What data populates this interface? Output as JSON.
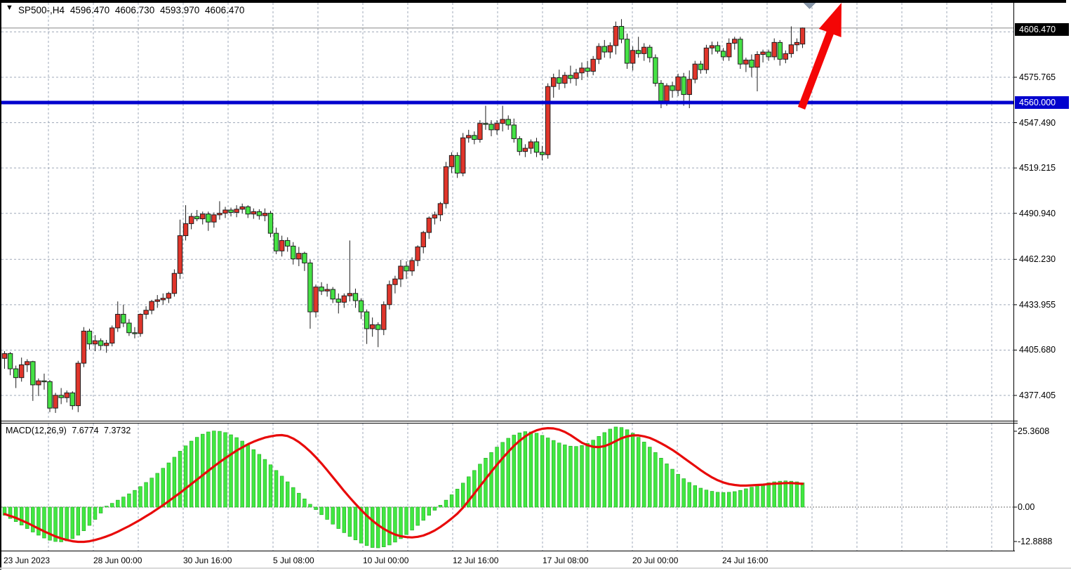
{
  "header": {
    "symbol_period": "SP500-,H4",
    "open": "4596.470",
    "high": "4606.730",
    "low": "4593.970",
    "close": "4606.470"
  },
  "indicator": {
    "label": "MACD(12,26,9)",
    "macd_value": "7.6774",
    "signal_value": "7.3732"
  },
  "price_axis": {
    "current_price": "4606.470",
    "level_price": "4560.000",
    "ticks": [
      "4575.765",
      "4547.490",
      "4519.215",
      "4490.940",
      "4462.230",
      "4433.955",
      "4405.680",
      "4377.405"
    ]
  },
  "macd_axis": {
    "ticks": [
      "25.3608",
      "0.00",
      "-12.8888"
    ]
  },
  "time_axis": {
    "labels": [
      "23 Jun 2023",
      "28 Jun 00:00",
      "30 Jun 16:00",
      "5 Jul 08:00",
      "10 Jul 00:00",
      "12 Jul 16:00",
      "17 Jul 08:00",
      "20 Jul 00:00",
      "24 Jul 16:00"
    ]
  },
  "colors": {
    "up_candle": "#E0352B",
    "down_candle": "#45E245",
    "candle_border": "#1c1c1c",
    "macd_hist": "#41E841",
    "macd_signal": "#E80A0A",
    "level_line": "#0202CE",
    "current_line": "#888888",
    "grid": "#9FA8B8",
    "arrow": "#F40606",
    "marker": "#8796A8"
  },
  "chart_data": {
    "type": "candlestick",
    "title": "SP500-,H4",
    "ylim": [
      4362,
      4622
    ],
    "grid_prices": [
      4604.04,
      4575.765,
      4547.49,
      4519.215,
      4490.94,
      4462.23,
      4433.955,
      4405.68,
      4377.405
    ],
    "hline": {
      "price": 4560.0,
      "label": "4560.000"
    },
    "current_price": {
      "value": 4606.47,
      "label": "4606.470"
    },
    "candles": [
      [
        4400.5,
        4405,
        4394,
        4403.5
      ],
      [
        4403.5,
        4404.5,
        4390,
        4394
      ],
      [
        4394,
        4396,
        4382,
        4388.5
      ],
      [
        4388.5,
        4401,
        4386,
        4396.5
      ],
      [
        4396.5,
        4400,
        4392,
        4398.5
      ],
      [
        4398.5,
        4399,
        4374,
        4384
      ],
      [
        4384,
        4388,
        4377,
        4386.5
      ],
      [
        4386.5,
        4391,
        4381,
        4386
      ],
      [
        4386,
        4387,
        4367,
        4369.5
      ],
      [
        4369.5,
        4379,
        4366.5,
        4377.5
      ],
      [
        4377.5,
        4382,
        4372,
        4376
      ],
      [
        4376,
        4380.5,
        4373,
        4379
      ],
      [
        4379,
        4380,
        4368.5,
        4371
      ],
      [
        4371,
        4399,
        4367,
        4397.5
      ],
      [
        4397.5,
        4420,
        4395,
        4417.5
      ],
      [
        4417.5,
        4419,
        4406,
        4409.5
      ],
      [
        4409.5,
        4415,
        4405,
        4411.5
      ],
      [
        4411.5,
        4413,
        4405.5,
        4408.5
      ],
      [
        4408.5,
        4412,
        4404,
        4410
      ],
      [
        4410,
        4421,
        4408,
        4419.5
      ],
      [
        4419.5,
        4436,
        4417,
        4428
      ],
      [
        4428,
        4434,
        4420,
        4422.5
      ],
      [
        4422.5,
        4425,
        4414.5,
        4416.5
      ],
      [
        4416.5,
        4420,
        4413,
        4416
      ],
      [
        4416,
        4428.5,
        4414,
        4428
      ],
      [
        4428,
        4433,
        4425,
        4430.5
      ],
      [
        4430.5,
        4437,
        4428,
        4436
      ],
      [
        4436,
        4440,
        4432,
        4437
      ],
      [
        4437,
        4441,
        4434,
        4438
      ],
      [
        4438,
        4442,
        4435,
        4441
      ],
      [
        4441,
        4456,
        4439,
        4453.5
      ],
      [
        4453.5,
        4487,
        4450,
        4477
      ],
      [
        4477,
        4496,
        4474,
        4484.5
      ],
      [
        4484.5,
        4491,
        4481,
        4489
      ],
      [
        4489,
        4493,
        4486,
        4487.5
      ],
      [
        4487.5,
        4492,
        4484,
        4490.5
      ],
      [
        4490.5,
        4492,
        4480,
        4485.5
      ],
      [
        4485.5,
        4491.5,
        4482,
        4490
      ],
      [
        4490,
        4498.5,
        4487,
        4491
      ],
      [
        4491,
        4495,
        4488,
        4493
      ],
      [
        4493,
        4494.5,
        4489,
        4491.5
      ],
      [
        4491.5,
        4496,
        4488.5,
        4493.5
      ],
      [
        4493.5,
        4497,
        4491,
        4495
      ],
      [
        4495,
        4496,
        4488,
        4490.5
      ],
      [
        4490.5,
        4494,
        4487.5,
        4492
      ],
      [
        4492,
        4493.5,
        4487,
        4489.5
      ],
      [
        4489.5,
        4494,
        4486,
        4491
      ],
      [
        4491,
        4492.5,
        4476,
        4478.5
      ],
      [
        4478.5,
        4482,
        4465.5,
        4467.5
      ],
      [
        4467.5,
        4477,
        4464,
        4474
      ],
      [
        4474,
        4476,
        4467,
        4470.5
      ],
      [
        4470.5,
        4473,
        4459,
        4462.5
      ],
      [
        4462.5,
        4470,
        4458,
        4466
      ],
      [
        4466,
        4467,
        4455,
        4460
      ],
      [
        4460,
        4462,
        4419,
        4429.5
      ],
      [
        4429.5,
        4446.5,
        4426,
        4445
      ],
      [
        4445,
        4448,
        4440,
        4442.5
      ],
      [
        4442.5,
        4447,
        4439,
        4443.5
      ],
      [
        4443.5,
        4445,
        4435,
        4437.5
      ],
      [
        4437.5,
        4441,
        4428.5,
        4435.5
      ],
      [
        4435.5,
        4441,
        4432,
        4439.5
      ],
      [
        4439.5,
        4474,
        4436,
        4441
      ],
      [
        4441,
        4444,
        4432,
        4436.5
      ],
      [
        4436.5,
        4438,
        4425,
        4429.5
      ],
      [
        4429.5,
        4431,
        4409.5,
        4419
      ],
      [
        4419,
        4426,
        4414,
        4421.5
      ],
      [
        4421.5,
        4423,
        4407.5,
        4418.5
      ],
      [
        4418.5,
        4436,
        4415,
        4434
      ],
      [
        4434,
        4449,
        4431,
        4446.5
      ],
      [
        4446.5,
        4452,
        4441,
        4450
      ],
      [
        4450,
        4462,
        4445,
        4458
      ],
      [
        4458,
        4461,
        4450,
        4455
      ],
      [
        4455,
        4463.5,
        4452,
        4461.5
      ],
      [
        4461.5,
        4471,
        4458,
        4470
      ],
      [
        4470,
        4480,
        4466,
        4479
      ],
      [
        4479,
        4489,
        4475,
        4488
      ],
      [
        4488,
        4492,
        4484,
        4490
      ],
      [
        4490,
        4498,
        4486,
        4497
      ],
      [
        4497,
        4523,
        4494,
        4520
      ],
      [
        4520,
        4529,
        4516,
        4527
      ],
      [
        4527,
        4529,
        4513,
        4516
      ],
      [
        4516,
        4541,
        4514,
        4538
      ],
      [
        4538,
        4543,
        4535,
        4539.5
      ],
      [
        4539.5,
        4542,
        4534,
        4537
      ],
      [
        4537,
        4549,
        4535,
        4547
      ],
      [
        4547,
        4558,
        4543,
        4546.5
      ],
      [
        4546.5,
        4549,
        4539,
        4543
      ],
      [
        4543,
        4549,
        4540,
        4547
      ],
      [
        4547,
        4558,
        4542,
        4549.5
      ],
      [
        4549.5,
        4552,
        4543,
        4546
      ],
      [
        4546,
        4550,
        4535,
        4537.5
      ],
      [
        4537.5,
        4539,
        4527,
        4529.5
      ],
      [
        4529.5,
        4534,
        4526,
        4531.5
      ],
      [
        4531.5,
        4537,
        4528,
        4535.5
      ],
      [
        4535.5,
        4538,
        4526,
        4529
      ],
      [
        4529,
        4533,
        4524,
        4527.5
      ],
      [
        4527.5,
        4572,
        4525,
        4570
      ],
      [
        4570,
        4578,
        4563,
        4575.5
      ],
      [
        4575.5,
        4580.5,
        4568,
        4572
      ],
      [
        4572,
        4579,
        4569,
        4577
      ],
      [
        4577,
        4583,
        4572,
        4575
      ],
      [
        4575,
        4581,
        4570.5,
        4578.5
      ],
      [
        4578.5,
        4585,
        4574,
        4581.5
      ],
      [
        4581.5,
        4586,
        4576,
        4579.5
      ],
      [
        4579.5,
        4589,
        4577,
        4587
      ],
      [
        4587,
        4597,
        4584,
        4595
      ],
      [
        4595,
        4599,
        4588,
        4591.5
      ],
      [
        4591.5,
        4597.5,
        4587.5,
        4595.5
      ],
      [
        4595.5,
        4610.5,
        4590,
        4607.5
      ],
      [
        4607.5,
        4612,
        4597,
        4599.5
      ],
      [
        4599.5,
        4603,
        4581,
        4584.5
      ],
      [
        4584.5,
        4595,
        4580,
        4592.5
      ],
      [
        4592.5,
        4601,
        4588,
        4590.5
      ],
      [
        4590.5,
        4597,
        4586,
        4594.5
      ],
      [
        4594.5,
        4596,
        4585,
        4588
      ],
      [
        4588,
        4590,
        4570,
        4572
      ],
      [
        4572,
        4574,
        4556.5,
        4561
      ],
      [
        4561,
        4572,
        4558,
        4570.5
      ],
      [
        4570.5,
        4573,
        4563,
        4567.5
      ],
      [
        4567.5,
        4578,
        4564,
        4576
      ],
      [
        4576,
        4578.5,
        4558,
        4565
      ],
      [
        4565,
        4580,
        4556.5,
        4574.5
      ],
      [
        4574.5,
        4586,
        4572,
        4584
      ],
      [
        4584,
        4586,
        4578,
        4580.5
      ],
      [
        4580.5,
        4596,
        4578,
        4594
      ],
      [
        4594,
        4598,
        4590,
        4595.5
      ],
      [
        4595.5,
        4598,
        4590.5,
        4592
      ],
      [
        4592,
        4594,
        4586,
        4588.5
      ],
      [
        4588.5,
        4600,
        4586,
        4597
      ],
      [
        4597,
        4601,
        4593,
        4599.5
      ],
      [
        4599.5,
        4601,
        4581,
        4584
      ],
      [
        4584,
        4588,
        4579,
        4586.5
      ],
      [
        4586.5,
        4590,
        4576,
        4582
      ],
      [
        4582,
        4592,
        4567,
        4590
      ],
      [
        4590,
        4593,
        4585,
        4591.5
      ],
      [
        4591.5,
        4593,
        4586,
        4588.5
      ],
      [
        4588.5,
        4600,
        4586.5,
        4597.5
      ],
      [
        4597.5,
        4599,
        4583,
        4587
      ],
      [
        4587,
        4592.5,
        4584.5,
        4590.5
      ],
      [
        4590.5,
        4607.5,
        4588,
        4596
      ],
      [
        4596,
        4600,
        4592,
        4597.5
      ],
      [
        4596.47,
        4606.73,
        4593.97,
        4606.47
      ]
    ],
    "macd": {
      "type": "bar+line",
      "params": "12,26,9",
      "value": 7.6774,
      "signal_value": 7.3732,
      "ylim": [
        -12.8888,
        25.3608
      ],
      "histogram": [
        -2.6,
        -3.6,
        -4.6,
        -5.7,
        -6.8,
        -7.9,
        -8.9,
        -9.8,
        -10.5,
        -10.9,
        -11.0,
        -10.7,
        -10.0,
        -8.9,
        -7.5,
        -5.8,
        -3.9,
        -1.9,
        0.3,
        1.2,
        2.2,
        3.2,
        4.2,
        5.3,
        6.5,
        7.8,
        9.2,
        10.7,
        12.3,
        14.0,
        15.8,
        17.7,
        19.4,
        20.9,
        22.1,
        23.1,
        23.8,
        24.1,
        24.0,
        23.6,
        22.9,
        22.0,
        20.9,
        19.6,
        18.2,
        16.7,
        15.1,
        13.4,
        11.6,
        9.8,
        8.0,
        6.2,
        4.4,
        2.6,
        0.9,
        -0.8,
        -2.4,
        -3.9,
        -5.4,
        -6.8,
        -8.1,
        -9.3,
        -10.4,
        -11.4,
        -12.2,
        -12.8,
        -12.9,
        -12.6,
        -12.0,
        -11.1,
        -10.0,
        -8.7,
        -7.3,
        -5.8,
        -4.2,
        -2.6,
        -1.0,
        0.6,
        2.2,
        3.9,
        5.7,
        7.6,
        9.6,
        11.6,
        13.6,
        15.5,
        17.3,
        19.0,
        20.5,
        21.8,
        22.8,
        23.5,
        23.9,
        23.8,
        23.4,
        22.7,
        21.9,
        21.1,
        20.3,
        19.7,
        19.3,
        19.2,
        19.5,
        20.2,
        21.2,
        22.4,
        23.6,
        24.7,
        25.36,
        25.2,
        24.5,
        23.4,
        22.1,
        20.6,
        19.0,
        17.3,
        15.5,
        13.7,
        12.0,
        10.4,
        9.0,
        7.8,
        6.8,
        6.0,
        5.4,
        5.0,
        4.7,
        4.6,
        4.7,
        4.9,
        5.3,
        5.8,
        6.3,
        6.8,
        7.3,
        7.7,
        8.0,
        8.2,
        8.3,
        8.2,
        8.0,
        7.68
      ],
      "signal": [
        -2.2,
        -2.8,
        -3.4,
        -4.2,
        -5.0,
        -5.9,
        -6.8,
        -7.7,
        -8.5,
        -9.3,
        -9.9,
        -10.4,
        -10.8,
        -11.0,
        -11.0,
        -10.8,
        -10.4,
        -9.9,
        -9.3,
        -8.6,
        -7.8,
        -6.9,
        -6.0,
        -5.0,
        -4.0,
        -2.9,
        -1.8,
        -0.6,
        0.6,
        1.9,
        3.2,
        4.5,
        5.9,
        7.3,
        8.7,
        10.1,
        11.5,
        12.9,
        14.2,
        15.5,
        16.7,
        17.9,
        18.9,
        19.9,
        20.7,
        21.4,
        22.0,
        22.4,
        22.7,
        22.8,
        22.5,
        21.7,
        20.6,
        19.2,
        17.6,
        15.8,
        13.8,
        11.7,
        9.5,
        7.3,
        5.1,
        3.0,
        1.0,
        -0.9,
        -2.7,
        -4.3,
        -5.7,
        -6.9,
        -7.9,
        -8.7,
        -9.2,
        -9.5,
        -9.6,
        -9.4,
        -9.0,
        -8.3,
        -7.4,
        -6.3,
        -5.0,
        -3.6,
        -2.1,
        -0.2,
        2.0,
        4.3,
        6.6,
        8.9,
        11.2,
        13.4,
        15.5,
        17.5,
        19.4,
        21.0,
        22.4,
        23.5,
        24.3,
        24.8,
        25.0,
        24.9,
        24.5,
        23.8,
        22.8,
        21.6,
        20.4,
        19.6,
        19.1,
        19.0,
        19.3,
        20.0,
        20.9,
        21.8,
        22.4,
        22.7,
        22.7,
        22.4,
        21.9,
        21.1,
        20.2,
        19.2,
        18.1,
        16.9,
        15.6,
        14.3,
        13.0,
        11.7,
        10.5,
        9.4,
        8.5,
        7.8,
        7.3,
        7.0,
        6.8,
        6.8,
        6.9,
        7.0,
        7.1,
        7.3,
        7.4,
        7.5,
        7.6,
        7.6,
        7.5,
        7.37
      ]
    },
    "annotations": [
      {
        "type": "arrow",
        "direction": "up-right",
        "desc": "red arrow from 4560.000 level pointing up toward new highs"
      },
      {
        "type": "marker",
        "shape": "triangle-down",
        "desc": "gray end-of-data marker at top of chart"
      }
    ]
  }
}
